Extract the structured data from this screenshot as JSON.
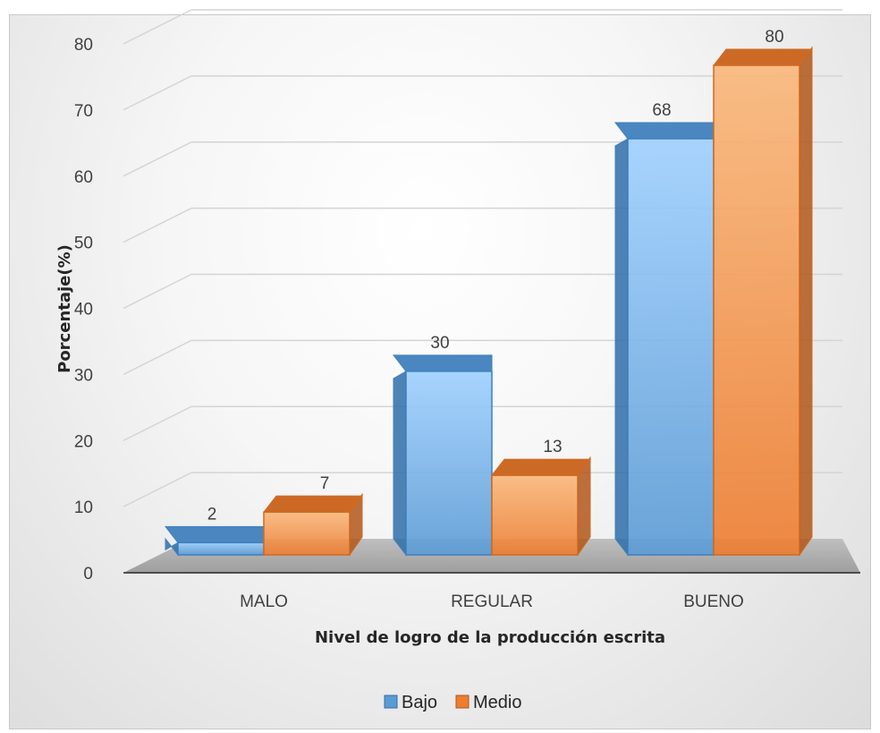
{
  "chart_data": {
    "type": "bar",
    "title": "",
    "xlabel": "Nivel de logro de la producción escrita",
    "ylabel": "Porcentaje(%)",
    "categories": [
      "MALO",
      "REGULAR",
      "BUENO"
    ],
    "series": [
      {
        "name": "Bajo",
        "values": [
          2,
          30,
          68
        ],
        "labels": [
          "2",
          "30",
          "68"
        ],
        "color": "#5b9bd5"
      },
      {
        "name": "Medio",
        "values": [
          7,
          13,
          80
        ],
        "labels": [
          "7",
          "13",
          "80"
        ],
        "color": "#ed7d31"
      }
    ],
    "ylim": [
      0,
      80
    ],
    "yticks": [
      "0",
      "10",
      "20",
      "30",
      "40",
      "50",
      "60",
      "70",
      "80"
    ],
    "grid": true,
    "legend": "bottom",
    "style": "3d-column"
  }
}
